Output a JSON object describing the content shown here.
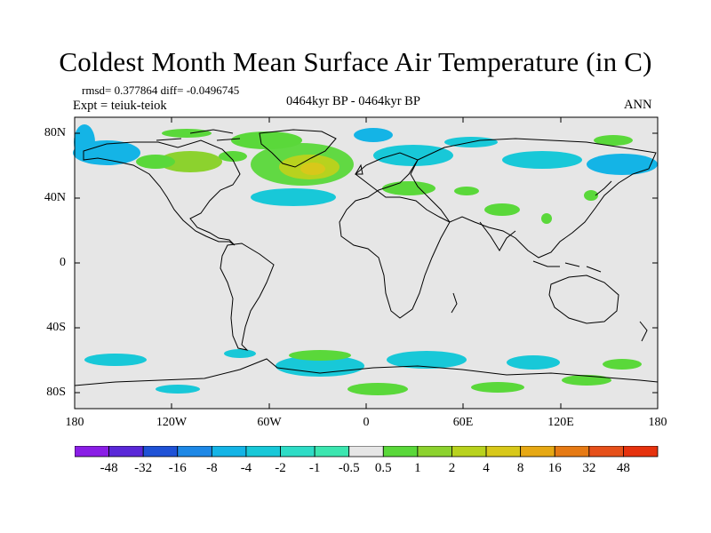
{
  "title": "Coldest Month Mean Surface Air Temperature (in C)",
  "stats": "rmsd= 0.377864  diff= -0.0496745",
  "experiment": "Expt = teiuk-teiok",
  "period": "0464kyr BP - 0464kyr BP",
  "season": "ANN",
  "latitude_ticks": [
    "80N",
    "40N",
    "0",
    "40S",
    "80S"
  ],
  "longitude_ticks": [
    "180",
    "120W",
    "60W",
    "0",
    "60E",
    "120E",
    "180"
  ],
  "colorbar": {
    "labels": [
      "-48",
      "-32",
      "-16",
      "-8",
      "-4",
      "-2",
      "-1",
      "-0.5",
      "0.5",
      "1",
      "2",
      "4",
      "8",
      "16",
      "32",
      "48"
    ],
    "colors": [
      "#8a1ee6",
      "#5a28d8",
      "#1f52d6",
      "#1e88e6",
      "#14b4e6",
      "#18c8d8",
      "#2edcc6",
      "#3ce6b0",
      "#e6e6e6",
      "#5ad83a",
      "#8cd22e",
      "#b8d21e",
      "#d8c81a",
      "#e6a814",
      "#e67a14",
      "#e6501a",
      "#e6320e"
    ]
  },
  "map": {
    "ocean_land_background": "#e6e6e6",
    "coastline_color": "#000000"
  }
}
